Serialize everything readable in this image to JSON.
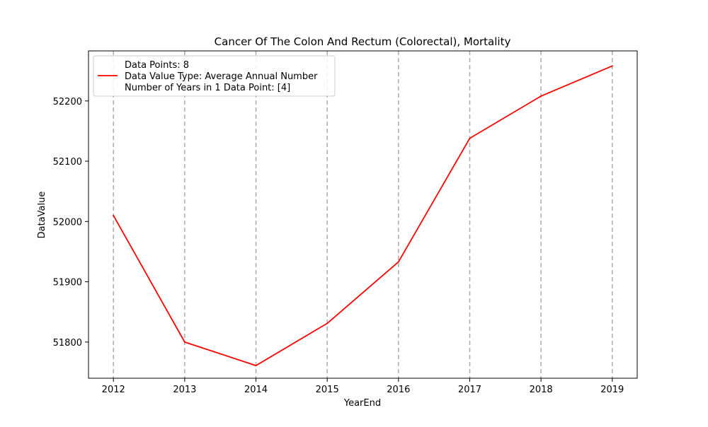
{
  "chart_data": {
    "type": "line",
    "title": "Cancer Of The Colon And Rectum (Colorectal), Mortality",
    "xlabel": "YearEnd",
    "ylabel": "DataValue",
    "x": [
      2012,
      2013,
      2014,
      2015,
      2016,
      2017,
      2018,
      2019
    ],
    "x_ticks": [
      "2012",
      "2013",
      "2014",
      "2015",
      "2016",
      "2017",
      "2018",
      "2019"
    ],
    "y_ticks": [
      "51800",
      "51900",
      "52000",
      "52100",
      "52200"
    ],
    "y_tick_values": [
      51800,
      51900,
      52000,
      52100,
      52200
    ],
    "xlim": [
      2011.65,
      2019.35
    ],
    "ylim": [
      51740,
      52283
    ],
    "series": [
      {
        "values": [
          52010,
          51800,
          51761,
          51831,
          51933,
          52138,
          52208,
          52258
        ],
        "color": "#ff0000"
      }
    ],
    "legend": {
      "placement": "top-left",
      "entries": [
        "Data Points: 8",
        "Data Value Type: Average Annual Number",
        "Number of Years in 1 Data Point: [4]"
      ]
    },
    "grid": {
      "x": true,
      "y": false,
      "style": "dashed",
      "color": "#b0b0b0"
    }
  }
}
